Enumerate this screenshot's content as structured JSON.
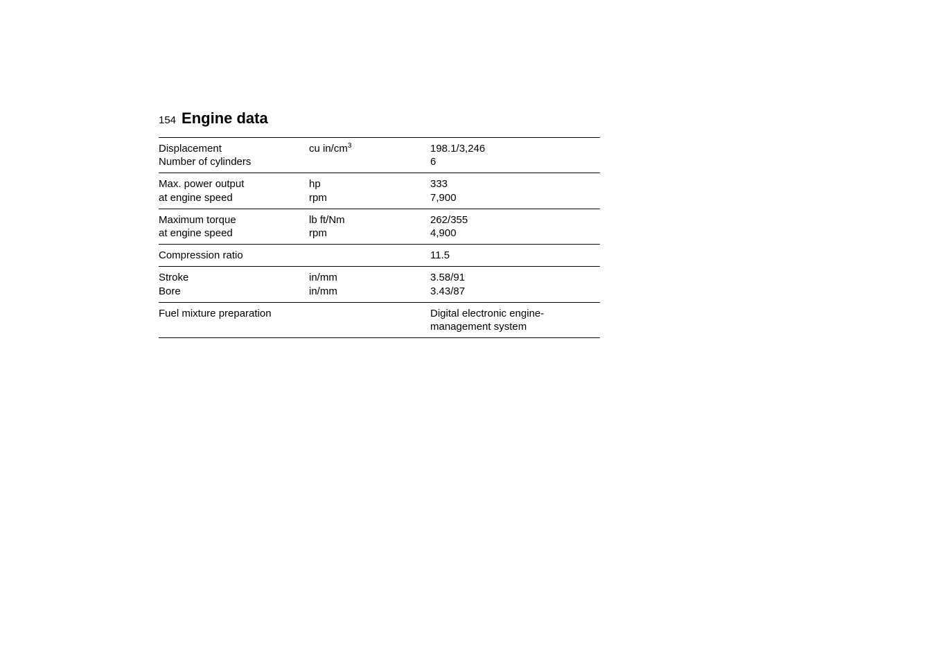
{
  "page_number": "154",
  "title": "Engine data",
  "rows": [
    {
      "label1": "Displacement",
      "label2": "Number of cylinders",
      "unit1": "cu in/cm",
      "unit1_sup": "3",
      "unit2": "",
      "value1": "198.1/3,246",
      "value2": "6"
    },
    {
      "label1": "Max. power output",
      "label2": "at engine speed",
      "unit1": "hp",
      "unit2": "rpm",
      "value1": "333",
      "value2": "7,900"
    },
    {
      "label1": "Maximum torque",
      "label2": "at engine speed",
      "unit1": "lb ft/Nm",
      "unit2": "rpm",
      "value1": "262/355",
      "value2": "4,900"
    },
    {
      "label1": "Compression ratio",
      "label2": "",
      "unit1": "",
      "unit2": "",
      "value1": "11.5",
      "value2": ""
    },
    {
      "label1": "Stroke",
      "label2": "Bore",
      "unit1": "in/mm",
      "unit2": "in/mm",
      "value1": "3.58/91",
      "value2": "3.43/87"
    },
    {
      "label1": "Fuel mixture preparation",
      "label2": "",
      "unit1": "",
      "unit2": "",
      "value1": "Digital electronic engine-management system",
      "value2": ""
    }
  ]
}
